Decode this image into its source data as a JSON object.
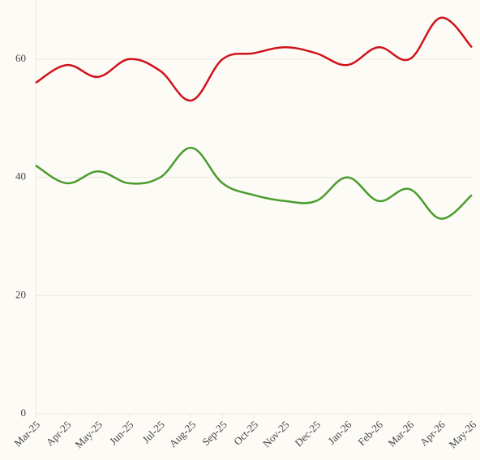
{
  "chart_data": {
    "type": "line",
    "categories": [
      "Mar-25",
      "Apr-25",
      "May-25",
      "Jun-25",
      "Jul-25",
      "Aug-25",
      "Sep-25",
      "Oct-25",
      "Nov-25",
      "Dec-25",
      "Jan-26",
      "Feb-26",
      "Mar-26",
      "Apr-26",
      "May-26"
    ],
    "series": [
      {
        "color": "#d0121b",
        "values": [
          56,
          59,
          57,
          60,
          58,
          53,
          60,
          61,
          62,
          61,
          59,
          62,
          60,
          67,
          62
        ]
      },
      {
        "color": "#4a9c2d",
        "values": [
          42,
          39,
          41,
          39,
          40,
          45,
          39,
          37,
          36,
          36,
          40,
          36,
          38,
          33,
          37
        ]
      }
    ],
    "ylim": [
      0,
      70
    ],
    "yticks": [
      0,
      20,
      40,
      60
    ],
    "grid": true
  }
}
